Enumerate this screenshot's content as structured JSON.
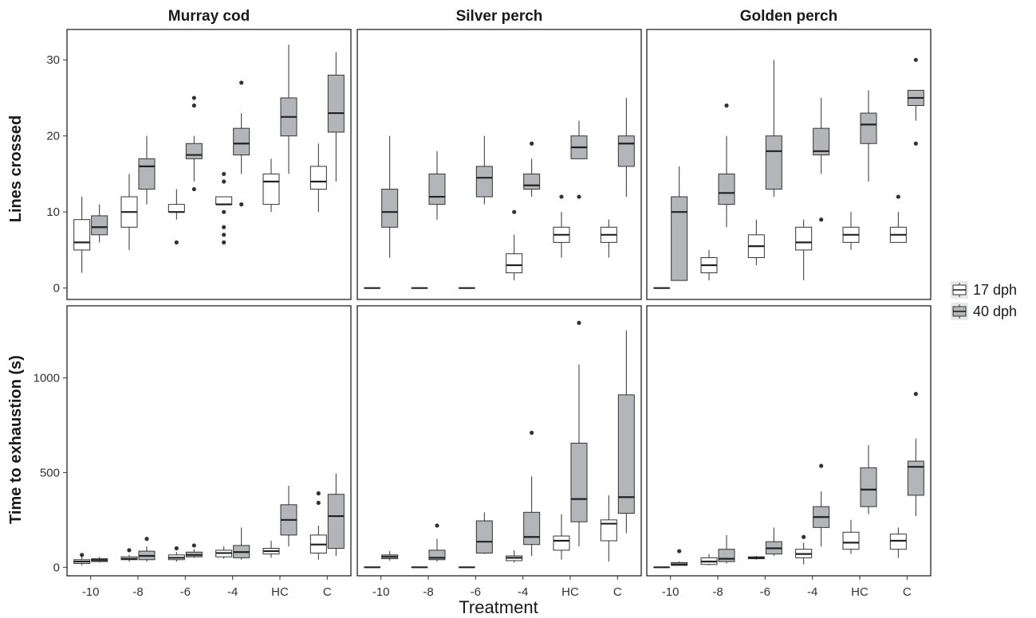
{
  "chart_data": {
    "type": "boxplot",
    "xlabel": "Treatment",
    "categories": [
      "-10",
      "-8",
      "-6",
      "-4",
      "HC",
      "C"
    ],
    "panel_titles": [
      "Murray cod",
      "Silver perch",
      "Golden perch"
    ],
    "legend": {
      "placement": "right",
      "entries": [
        {
          "label": "17 dph",
          "color": "#ffffff"
        },
        {
          "label": "40 dph",
          "color": "#b4b5b9"
        }
      ]
    },
    "rows": [
      {
        "ylabel": "Lines crossed",
        "ylim": [
          -1.5,
          34
        ],
        "yticks": [
          0,
          10,
          20,
          30
        ],
        "species": [
          {
            "name": "Murray cod",
            "groups": {
              "17 dph": [
                {
                  "low": 2,
                  "q1": 5,
                  "median": 6,
                  "q3": 9,
                  "high": 12,
                  "outliers": []
                },
                {
                  "low": 5,
                  "q1": 8,
                  "median": 10,
                  "q3": 12,
                  "high": 15,
                  "outliers": []
                },
                {
                  "low": 9,
                  "q1": 10,
                  "median": 10,
                  "q3": 11,
                  "high": 13,
                  "outliers": [
                    6
                  ]
                },
                {
                  "low": 11,
                  "q1": 11,
                  "median": 11,
                  "q3": 12,
                  "high": 12,
                  "outliers": [
                    6,
                    7,
                    8,
                    10,
                    14,
                    15
                  ]
                },
                {
                  "low": 10,
                  "q1": 11,
                  "median": 14,
                  "q3": 15,
                  "high": 17,
                  "outliers": []
                },
                {
                  "low": 10,
                  "q1": 13,
                  "median": 14,
                  "q3": 16,
                  "high": 19,
                  "outliers": []
                }
              ],
              "40 dph": [
                {
                  "low": 6,
                  "q1": 7,
                  "median": 8,
                  "q3": 9.5,
                  "high": 11,
                  "outliers": []
                },
                {
                  "low": 11,
                  "q1": 13,
                  "median": 16,
                  "q3": 17,
                  "high": 20,
                  "outliers": []
                },
                {
                  "low": 14,
                  "q1": 17,
                  "median": 17.5,
                  "q3": 19,
                  "high": 20,
                  "outliers": [
                    13,
                    24,
                    25
                  ]
                },
                {
                  "low": 15,
                  "q1": 17.5,
                  "median": 19,
                  "q3": 21,
                  "high": 23,
                  "outliers": [
                    11,
                    27
                  ]
                },
                {
                  "low": 15,
                  "q1": 20,
                  "median": 22.5,
                  "q3": 25,
                  "high": 32,
                  "outliers": []
                },
                {
                  "low": 14,
                  "q1": 20.5,
                  "median": 23,
                  "q3": 28,
                  "high": 31,
                  "outliers": []
                }
              ]
            }
          },
          {
            "name": "Silver perch",
            "groups": {
              "17 dph": [
                {
                  "low": 0,
                  "q1": 0,
                  "median": 0,
                  "q3": 0,
                  "high": 0,
                  "outliers": []
                },
                {
                  "low": 0,
                  "q1": 0,
                  "median": 0,
                  "q3": 0,
                  "high": 0,
                  "outliers": []
                },
                {
                  "low": 0,
                  "q1": 0,
                  "median": 0,
                  "q3": 0,
                  "high": 0,
                  "outliers": []
                },
                {
                  "low": 1,
                  "q1": 2,
                  "median": 3,
                  "q3": 4.5,
                  "high": 7,
                  "outliers": [
                    10
                  ]
                },
                {
                  "low": 4,
                  "q1": 6,
                  "median": 7,
                  "q3": 8,
                  "high": 10,
                  "outliers": [
                    12
                  ]
                },
                {
                  "low": 4,
                  "q1": 6,
                  "median": 7,
                  "q3": 8,
                  "high": 9,
                  "outliers": []
                }
              ],
              "40 dph": [
                {
                  "low": 4,
                  "q1": 8,
                  "median": 10,
                  "q3": 13,
                  "high": 20,
                  "outliers": []
                },
                {
                  "low": 9,
                  "q1": 11,
                  "median": 12,
                  "q3": 15,
                  "high": 18,
                  "outliers": []
                },
                {
                  "low": 11,
                  "q1": 12,
                  "median": 14.5,
                  "q3": 16,
                  "high": 20,
                  "outliers": []
                },
                {
                  "low": 12,
                  "q1": 13,
                  "median": 13.5,
                  "q3": 15,
                  "high": 17,
                  "outliers": [
                    19
                  ]
                },
                {
                  "low": 17,
                  "q1": 17,
                  "median": 18.5,
                  "q3": 20,
                  "high": 22,
                  "outliers": [
                    12
                  ]
                },
                {
                  "low": 12,
                  "q1": 16,
                  "median": 19,
                  "q3": 20,
                  "high": 25,
                  "outliers": []
                }
              ]
            }
          },
          {
            "name": "Golden perch",
            "groups": {
              "17 dph": [
                {
                  "low": 0,
                  "q1": 0,
                  "median": 0,
                  "q3": 0,
                  "high": 0,
                  "outliers": []
                },
                {
                  "low": 1,
                  "q1": 2,
                  "median": 3,
                  "q3": 4,
                  "high": 5,
                  "outliers": []
                },
                {
                  "low": 3,
                  "q1": 4,
                  "median": 5.5,
                  "q3": 7,
                  "high": 9,
                  "outliers": []
                },
                {
                  "low": 1,
                  "q1": 5,
                  "median": 6,
                  "q3": 8,
                  "high": 9,
                  "outliers": []
                },
                {
                  "low": 5,
                  "q1": 6,
                  "median": 7,
                  "q3": 8,
                  "high": 10,
                  "outliers": []
                },
                {
                  "low": 6,
                  "q1": 6,
                  "median": 7,
                  "q3": 8,
                  "high": 10,
                  "outliers": [
                    12
                  ]
                }
              ],
              "40 dph": [
                {
                  "low": 1,
                  "q1": 1,
                  "median": 10,
                  "q3": 12,
                  "high": 16,
                  "outliers": []
                },
                {
                  "low": 8,
                  "q1": 11,
                  "median": 12.5,
                  "q3": 15,
                  "high": 20,
                  "outliers": [
                    24
                  ]
                },
                {
                  "low": 12,
                  "q1": 13,
                  "median": 18,
                  "q3": 20,
                  "high": 30,
                  "outliers": []
                },
                {
                  "low": 15,
                  "q1": 17.5,
                  "median": 18,
                  "q3": 21,
                  "high": 25,
                  "outliers": [
                    9
                  ]
                },
                {
                  "low": 14,
                  "q1": 19,
                  "median": 21.5,
                  "q3": 23,
                  "high": 26,
                  "outliers": []
                },
                {
                  "low": 22,
                  "q1": 24,
                  "median": 25,
                  "q3": 26,
                  "high": 26,
                  "outliers": [
                    19,
                    30
                  ]
                }
              ]
            }
          }
        ]
      },
      {
        "ylabel": "Time to exhaustion (s)",
        "ylim": [
          -45,
          1380
        ],
        "yticks": [
          0,
          500,
          1000
        ],
        "species": [
          {
            "name": "Murray cod",
            "groups": {
              "17 dph": [
                {
                  "low": 10,
                  "q1": 20,
                  "median": 30,
                  "q3": 40,
                  "high": 55,
                  "outliers": [
                    65
                  ]
                },
                {
                  "low": 30,
                  "q1": 40,
                  "median": 45,
                  "q3": 55,
                  "high": 65,
                  "outliers": [
                    90
                  ]
                },
                {
                  "low": 30,
                  "q1": 40,
                  "median": 50,
                  "q3": 65,
                  "high": 80,
                  "outliers": [
                    100
                  ]
                },
                {
                  "low": 45,
                  "q1": 55,
                  "median": 75,
                  "q3": 90,
                  "high": 110,
                  "outliers": []
                },
                {
                  "low": 50,
                  "q1": 70,
                  "median": 85,
                  "q3": 100,
                  "high": 140,
                  "outliers": []
                },
                {
                  "low": 40,
                  "q1": 75,
                  "median": 120,
                  "q3": 170,
                  "high": 220,
                  "outliers": [
                    340,
                    390
                  ]
                }
              ],
              "40 dph": [
                {
                  "low": 25,
                  "q1": 30,
                  "median": 38,
                  "q3": 45,
                  "high": 55,
                  "outliers": []
                },
                {
                  "low": 30,
                  "q1": 40,
                  "median": 60,
                  "q3": 85,
                  "high": 110,
                  "outliers": [
                    150
                  ]
                },
                {
                  "low": 50,
                  "q1": 55,
                  "median": 65,
                  "q3": 80,
                  "high": 95,
                  "outliers": [
                    115
                  ]
                },
                {
                  "low": 40,
                  "q1": 50,
                  "median": 80,
                  "q3": 115,
                  "high": 210,
                  "outliers": []
                },
                {
                  "low": 110,
                  "q1": 170,
                  "median": 250,
                  "q3": 330,
                  "high": 430,
                  "outliers": []
                },
                {
                  "low": 60,
                  "q1": 100,
                  "median": 270,
                  "q3": 385,
                  "high": 495,
                  "outliers": []
                }
              ]
            }
          },
          {
            "name": "Silver perch",
            "groups": {
              "17 dph": [
                {
                  "low": 0,
                  "q1": 0,
                  "median": 0,
                  "q3": 0,
                  "high": 0,
                  "outliers": []
                },
                {
                  "low": 0,
                  "q1": 0,
                  "median": 0,
                  "q3": 0,
                  "high": 0,
                  "outliers": []
                },
                {
                  "low": 0,
                  "q1": 0,
                  "median": 0,
                  "q3": 0,
                  "high": 0,
                  "outliers": []
                },
                {
                  "low": 25,
                  "q1": 35,
                  "median": 50,
                  "q3": 60,
                  "high": 90,
                  "outliers": []
                },
                {
                  "low": 40,
                  "q1": 90,
                  "median": 140,
                  "q3": 165,
                  "high": 280,
                  "outliers": []
                },
                {
                  "low": 30,
                  "q1": 140,
                  "median": 230,
                  "q3": 250,
                  "high": 380,
                  "outliers": []
                }
              ],
              "40 dph": [
                {
                  "low": 35,
                  "q1": 45,
                  "median": 55,
                  "q3": 65,
                  "high": 85,
                  "outliers": []
                },
                {
                  "low": 30,
                  "q1": 40,
                  "median": 50,
                  "q3": 90,
                  "high": 150,
                  "outliers": [
                    220
                  ]
                },
                {
                  "low": 70,
                  "q1": 75,
                  "median": 135,
                  "q3": 245,
                  "high": 290,
                  "outliers": []
                },
                {
                  "low": 60,
                  "q1": 120,
                  "median": 160,
                  "q3": 290,
                  "high": 480,
                  "outliers": [
                    710
                  ]
                },
                {
                  "low": 110,
                  "q1": 240,
                  "median": 360,
                  "q3": 655,
                  "high": 1070,
                  "outliers": [
                    1290
                  ]
                },
                {
                  "low": 180,
                  "q1": 285,
                  "median": 370,
                  "q3": 910,
                  "high": 1250,
                  "outliers": []
                }
              ]
            }
          },
          {
            "name": "Golden perch",
            "groups": {
              "17 dph": [
                {
                  "low": 0,
                  "q1": 0,
                  "median": 0,
                  "q3": 0,
                  "high": 0,
                  "outliers": []
                },
                {
                  "low": 10,
                  "q1": 15,
                  "median": 30,
                  "q3": 50,
                  "high": 70,
                  "outliers": []
                },
                {
                  "low": 40,
                  "q1": 45,
                  "median": 50,
                  "q3": 55,
                  "high": 60,
                  "outliers": []
                },
                {
                  "low": 15,
                  "q1": 50,
                  "median": 70,
                  "q3": 95,
                  "high": 130,
                  "outliers": [
                    160
                  ]
                },
                {
                  "low": 70,
                  "q1": 95,
                  "median": 130,
                  "q3": 185,
                  "high": 250,
                  "outliers": []
                },
                {
                  "low": 50,
                  "q1": 95,
                  "median": 140,
                  "q3": 175,
                  "high": 210,
                  "outliers": []
                }
              ],
              "40 dph": [
                {
                  "low": 10,
                  "q1": 10,
                  "median": 15,
                  "q3": 25,
                  "high": 30,
                  "outliers": [
                    85
                  ]
                },
                {
                  "low": 20,
                  "q1": 30,
                  "median": 45,
                  "q3": 95,
                  "high": 170,
                  "outliers": []
                },
                {
                  "low": 60,
                  "q1": 70,
                  "median": 100,
                  "q3": 135,
                  "high": 210,
                  "outliers": []
                },
                {
                  "low": 110,
                  "q1": 210,
                  "median": 265,
                  "q3": 320,
                  "high": 400,
                  "outliers": [
                    535
                  ]
                },
                {
                  "low": 280,
                  "q1": 320,
                  "median": 410,
                  "q3": 525,
                  "high": 645,
                  "outliers": []
                },
                {
                  "low": 270,
                  "q1": 380,
                  "median": 530,
                  "q3": 560,
                  "high": 680,
                  "outliers": [
                    915
                  ]
                }
              ]
            }
          }
        ]
      }
    ]
  }
}
